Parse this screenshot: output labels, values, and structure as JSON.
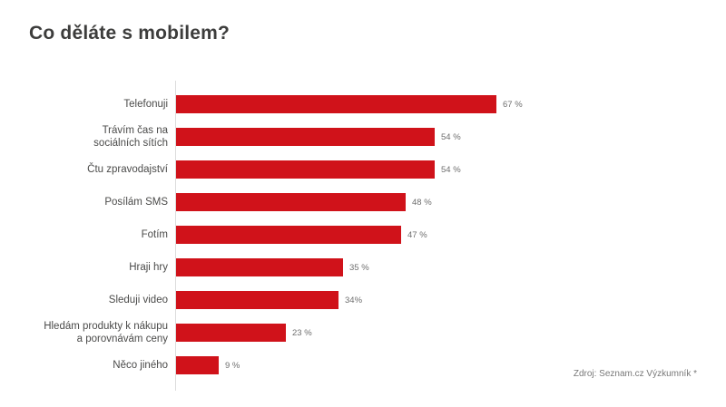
{
  "title": "Co děláte s mobilem?",
  "source": "Zdroj: Seznam.cz Výzkumník *",
  "colors": {
    "bar": "#d0121a",
    "title_text": "#3d3d3c",
    "category_text": "#4b4b4a",
    "value_text": "#6f6f6f",
    "source_text": "#787878",
    "axis_line": "#dcdcdc"
  },
  "chart_data": {
    "type": "bar",
    "orientation": "horizontal",
    "title": "Co děláte s mobilem?",
    "xlabel": "",
    "ylabel": "",
    "unit": "%",
    "xlim": [
      0,
      70
    ],
    "grid": false,
    "legend": false,
    "categories": [
      "Telefonuji",
      "Trávím čas na sociálních sítích",
      "Čtu zpravodajství",
      "Posílám SMS",
      "Fotím",
      "Hraji hry",
      "Sleduji video",
      "Hledám produkty k nákupu a porovnávám ceny",
      "Něco jiného"
    ],
    "category_lines": [
      [
        "Telefonuji"
      ],
      [
        "Trávím čas na",
        "sociálních sítích"
      ],
      [
        "Čtu zpravodajství"
      ],
      [
        "Posílám SMS"
      ],
      [
        "Fotím"
      ],
      [
        "Hraji hry"
      ],
      [
        "Sleduji video"
      ],
      [
        "Hledám produkty k nákupu",
        "a porovnávám ceny"
      ],
      [
        "Něco jiného"
      ]
    ],
    "values": [
      67,
      54,
      54,
      48,
      47,
      35,
      34,
      23,
      9
    ],
    "value_labels": [
      "67 %",
      "54 %",
      "54 %",
      "48 %",
      "47 %",
      "35 %",
      "34%",
      "23 %",
      "9 %"
    ]
  }
}
